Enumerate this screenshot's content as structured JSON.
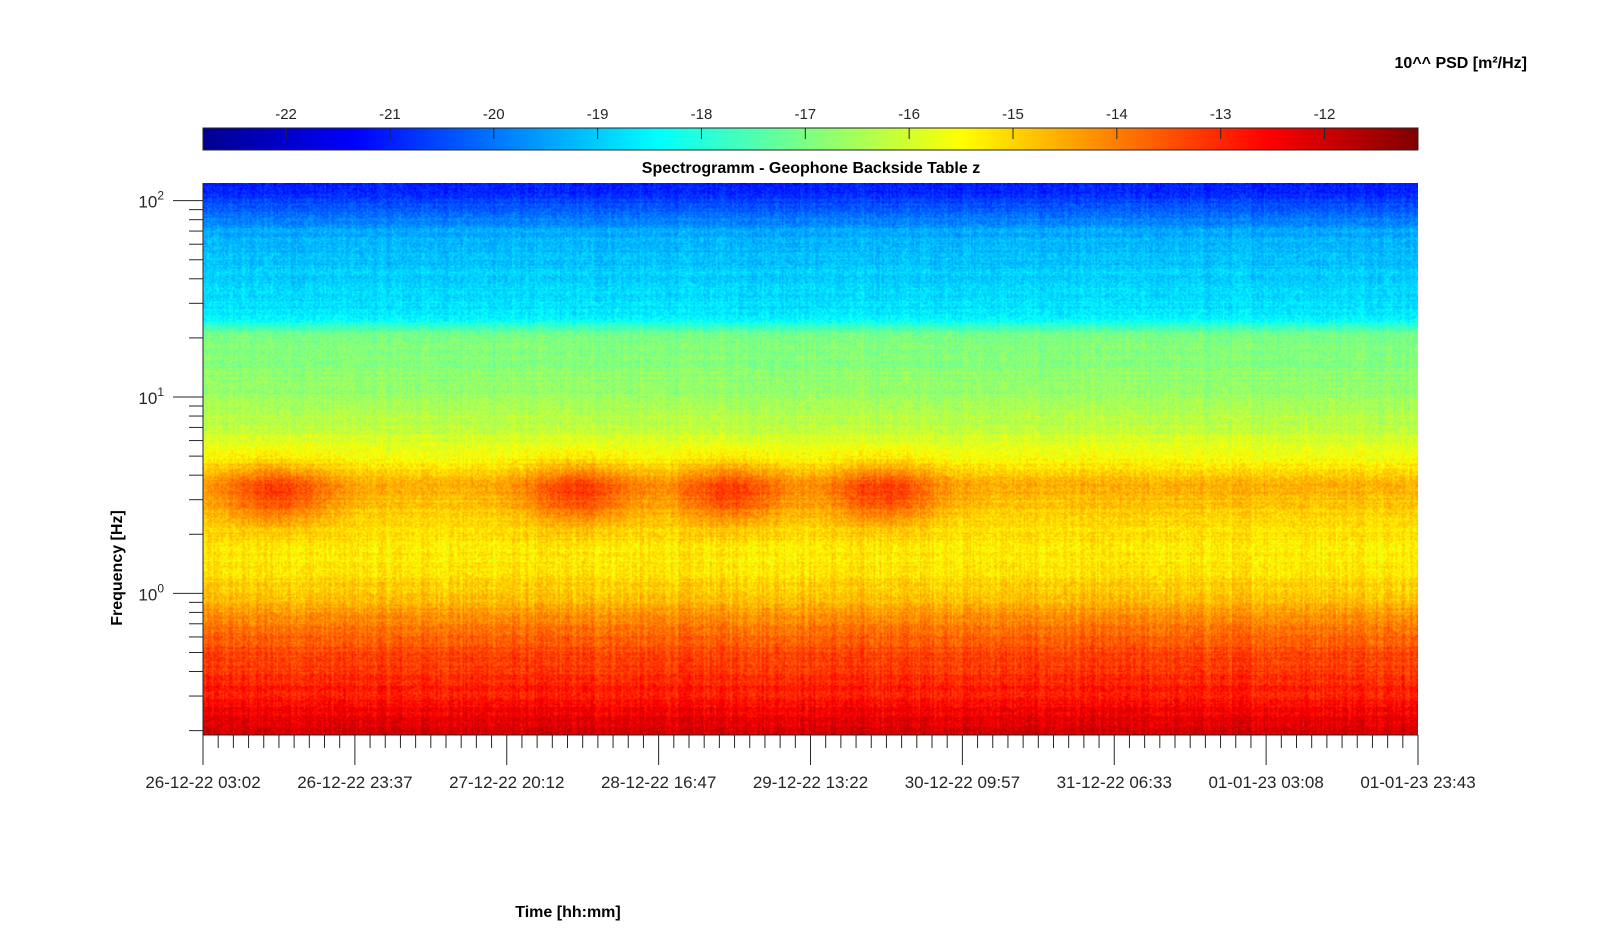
{
  "chart_data": {
    "type": "heatmap",
    "title": "Spectrogramm - Geophone Backside Table z",
    "xlabel": "Time [hh:mm]",
    "ylabel": "Frequency [Hz]",
    "x_tick_labels": [
      "26-12-22 03:02",
      "26-12-22 23:37",
      "27-12-22 20:12",
      "28-12-22 16:47",
      "29-12-22 13:22",
      "30-12-22 09:57",
      "31-12-22 06:33",
      "01-01-23 03:08",
      "01-01-23 23:43"
    ],
    "y_scale": "log",
    "y_tick_labels": [
      {
        "base": "10",
        "exp": "2",
        "value": 100
      },
      {
        "base": "10",
        "exp": "1",
        "value": 10
      },
      {
        "base": "10",
        "exp": "0",
        "value": 1
      }
    ],
    "ylim": [
      0.19,
      123
    ],
    "colorbar": {
      "label": "10^^ PSD [m²/Hz]",
      "ticks": [
        "-22",
        "-21",
        "-20",
        "-19",
        "-18",
        "-17",
        "-16",
        "-15",
        "-14",
        "-13",
        "-12"
      ],
      "clim": [
        -22.8,
        -11.1
      ],
      "colormap": "jet"
    },
    "intensity_profile": {
      "frequency_hz": [
        0.19,
        0.3,
        0.5,
        0.7,
        1.0,
        1.5,
        2.5,
        3.5,
        5.0,
        7.0,
        10,
        15,
        21,
        25,
        40,
        70,
        100,
        123
      ],
      "log_psd": [
        -12.0,
        -12.8,
        -13.4,
        -14.0,
        -14.9,
        -15.3,
        -15.0,
        -14.5,
        -15.6,
        -16.2,
        -16.6,
        -16.9,
        -17.0,
        -18.6,
        -18.9,
        -19.4,
        -20.6,
        -21.1
      ]
    },
    "bright_events": [
      "26-12-22 03:02",
      "27-12-22 20:12",
      "28-12-22 16:47",
      "29-12-22 13:22"
    ]
  }
}
